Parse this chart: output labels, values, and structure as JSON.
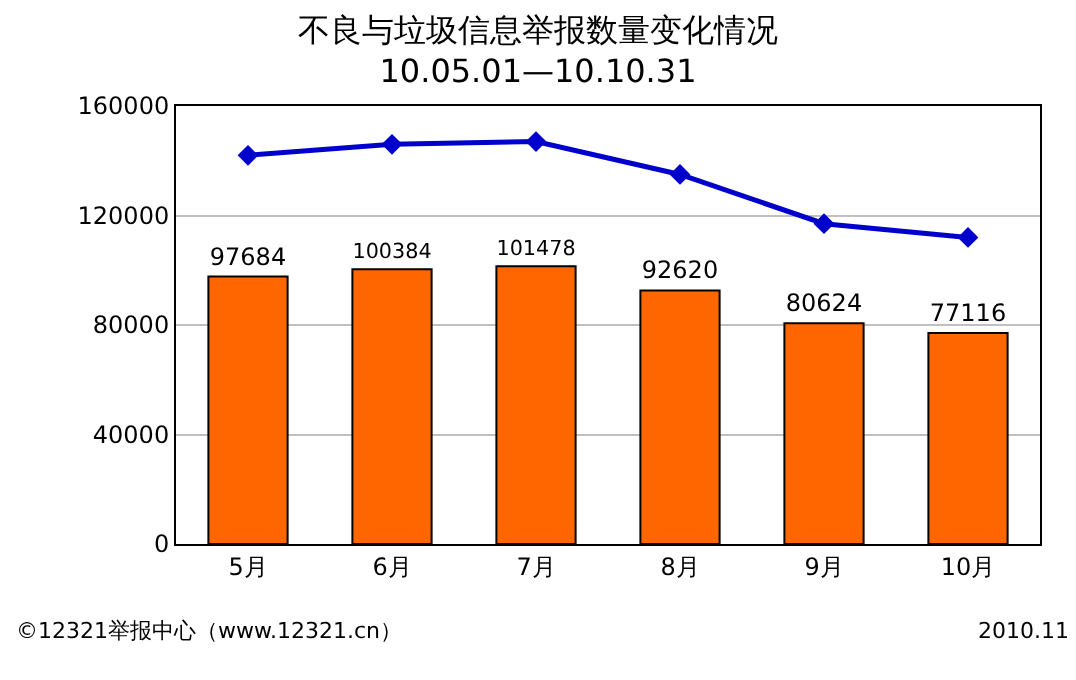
{
  "chart_data": {
    "type": "bar",
    "title": "不良与垃圾信息举报数量变化情况",
    "subtitle": "10.05.01—10.10.31",
    "categories": [
      "5月",
      "6月",
      "7月",
      "8月",
      "9月",
      "10月"
    ],
    "series": [
      {
        "color": "#ff6600",
        "values": [
          97684,
          100384,
          101478,
          92620,
          80624,
          77116
        ],
        "data_labels": true
      },
      {
        "type": "line",
        "color": "#0000cc",
        "values": [
          142000,
          146000,
          147000,
          135000,
          117000,
          112000
        ],
        "marker": "diamond"
      }
    ],
    "ylim": [
      0,
      160000
    ],
    "yticks": [
      0,
      40000,
      80000,
      120000,
      160000
    ],
    "grid": "y",
    "legend": false,
    "annotations": [
      "©12321举报中心（www.12321.cn）",
      "2010.11"
    ]
  }
}
